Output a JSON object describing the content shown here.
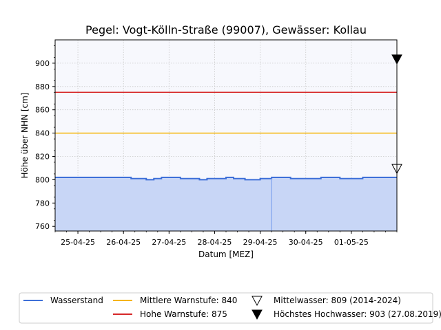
{
  "chart_data": {
    "type": "area",
    "title": "Pegel:  Vogt-Kölln-Straße (99007), Gewässer:  Kollau",
    "xlabel": "Datum [MEZ]",
    "ylabel": "Höhe über NHN [cm]",
    "ylim": [
      756,
      920
    ],
    "y_ticks": [
      760,
      780,
      800,
      820,
      840,
      860,
      880,
      900
    ],
    "xlim": [
      "2025-04-24T12:00",
      "2025-05-02T00:00"
    ],
    "x_ticks": [
      {
        "date": "2025-04-25",
        "label": "25-04-25"
      },
      {
        "date": "2025-04-26",
        "label": "26-04-25"
      },
      {
        "date": "2025-04-27",
        "label": "27-04-25"
      },
      {
        "date": "2025-04-28",
        "label": "28-04-25"
      },
      {
        "date": "2025-04-29",
        "label": "29-04-25"
      },
      {
        "date": "2025-04-30",
        "label": "30-04-25"
      },
      {
        "date": "2025-05-01",
        "label": "01-05-25"
      }
    ],
    "grid": true,
    "legend_position": "bottom",
    "colors": {
      "plot_background": "#f7f8fd",
      "water_line": "#3d6fd8",
      "water_fill": "#c8d6f6",
      "warn_mid": "#f5b400",
      "warn_high": "#d62728",
      "marker": "#000000"
    },
    "series": [
      {
        "name": "Wasserstand",
        "x": [
          "2025-04-24T12:00",
          "2025-04-25T00:00",
          "2025-04-25T12:00",
          "2025-04-25T16:00",
          "2025-04-25T20:00",
          "2025-04-26T00:00",
          "2025-04-26T04:00",
          "2025-04-26T08:00",
          "2025-04-26T12:00",
          "2025-04-26T16:00",
          "2025-04-26T20:00",
          "2025-04-27T00:00",
          "2025-04-27T06:00",
          "2025-04-27T12:00",
          "2025-04-27T16:00",
          "2025-04-27T20:00",
          "2025-04-28T00:00",
          "2025-04-28T06:00",
          "2025-04-28T10:00",
          "2025-04-28T16:00",
          "2025-04-28T20:00",
          "2025-04-29T00:00",
          "2025-04-29T06:00",
          "2025-04-29T10:00",
          "2025-04-29T16:00",
          "2025-04-29T22:00",
          "2025-04-30T04:00",
          "2025-04-30T08:00",
          "2025-04-30T12:00",
          "2025-04-30T18:00",
          "2025-05-01T00:00",
          "2025-05-01T06:00",
          "2025-05-01T12:00",
          "2025-05-01T18:00",
          "2025-05-02T00:00"
        ],
        "values": [
          802,
          802,
          802,
          802,
          802,
          802,
          801,
          801,
          800,
          801,
          802,
          802,
          801,
          801,
          800,
          801,
          801,
          802,
          801,
          800,
          800,
          801,
          802,
          802,
          801,
          801,
          801,
          802,
          802,
          801,
          801,
          802,
          802,
          802,
          802
        ]
      }
    ],
    "reference_lines": [
      {
        "name": "Mittlere Warnstufe: 840",
        "value": 840
      },
      {
        "name": "Hohe Warnstufe: 875",
        "value": 875
      }
    ],
    "markers": [
      {
        "name": "Mittelwasser: 809 (2014-2024)",
        "value": 809,
        "symbol": "open-triangle-down"
      },
      {
        "name": "Höchstes Hochwasser: 903 (27.08.2019)",
        "value": 903,
        "symbol": "filled-triangle-down"
      }
    ]
  }
}
